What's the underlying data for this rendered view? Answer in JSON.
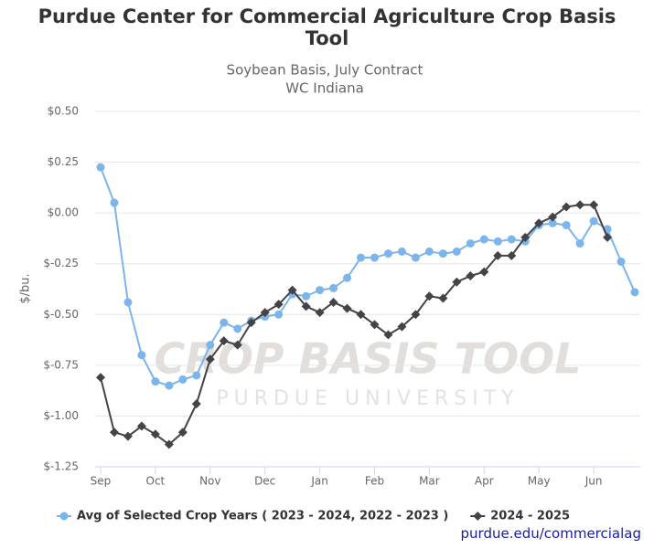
{
  "chart_data": {
    "type": "line",
    "title": "Purdue Center for Commercial Agriculture Crop Basis Tool",
    "subtitle": [
      "Soybean Basis, July Contract",
      "WC Indiana"
    ],
    "y_label": "$/bu.",
    "watermark": [
      "CROP BASIS TOOL",
      "PURDUE UNIVERSITY"
    ],
    "source": "purdue.edu/commercialag",
    "x": [
      0,
      1,
      2,
      3,
      4,
      5,
      6,
      7,
      8,
      9,
      10,
      11,
      12,
      13,
      14,
      15,
      16,
      17,
      18,
      19,
      20,
      21,
      22,
      23,
      24,
      25,
      26,
      27,
      28,
      29,
      30,
      31,
      32,
      33,
      34,
      35,
      36,
      37,
      38,
      39
    ],
    "xlim": [
      -0.4,
      39.4
    ],
    "xticks": [
      {
        "value": 0,
        "label": "Sep"
      },
      {
        "value": 4,
        "label": "Oct"
      },
      {
        "value": 8,
        "label": "Nov"
      },
      {
        "value": 12,
        "label": "Dec"
      },
      {
        "value": 16,
        "label": "Jan"
      },
      {
        "value": 20,
        "label": "Feb"
      },
      {
        "value": 24,
        "label": "Mar"
      },
      {
        "value": 28,
        "label": "Apr"
      },
      {
        "value": 32,
        "label": "May"
      },
      {
        "value": 36,
        "label": "Jun"
      }
    ],
    "ylim": [
      -1.25,
      0.5
    ],
    "yticks": [
      {
        "value": -1.25,
        "label": "$-1.25"
      },
      {
        "value": -1,
        "label": "$-1.00"
      },
      {
        "value": -0.75,
        "label": "$-0.75"
      },
      {
        "value": -0.5,
        "label": "$-0.50"
      },
      {
        "value": -0.25,
        "label": "$-0.25"
      },
      {
        "value": 0,
        "label": "$0.00"
      },
      {
        "value": 0.25,
        "label": "$0.25"
      },
      {
        "value": 0.5,
        "label": "$0.50"
      }
    ],
    "grid": true,
    "legend": "bottom",
    "series": [
      {
        "name": "Avg of Selected Crop Years ( 2023 - 2024, 2022 - 2023 )",
        "color": "#7cb5ec",
        "marker": "circle",
        "values": [
          0.225,
          0.05,
          -0.44,
          -0.7,
          -0.83,
          -0.85,
          -0.82,
          -0.8,
          -0.65,
          -0.54,
          -0.57,
          -0.53,
          -0.51,
          -0.5,
          -0.4,
          -0.41,
          -0.38,
          -0.37,
          -0.32,
          -0.22,
          -0.22,
          -0.2,
          -0.19,
          -0.22,
          -0.19,
          -0.2,
          -0.19,
          -0.15,
          -0.13,
          -0.14,
          -0.13,
          -0.14,
          -0.06,
          -0.05,
          -0.06,
          -0.15,
          -0.04,
          -0.08,
          -0.24,
          -0.39
        ]
      },
      {
        "name": "2024 - 2025",
        "color": "#434348",
        "marker": "diamond",
        "values": [
          -0.81,
          -1.08,
          -1.1,
          -1.05,
          -1.09,
          -1.14,
          -1.08,
          -0.94,
          -0.72,
          -0.63,
          -0.65,
          -0.54,
          -0.49,
          -0.45,
          -0.38,
          -0.46,
          -0.49,
          -0.44,
          -0.47,
          -0.5,
          -0.55,
          -0.6,
          -0.56,
          -0.5,
          -0.41,
          -0.42,
          -0.34,
          -0.31,
          -0.29,
          -0.21,
          -0.21,
          -0.12,
          -0.05,
          -0.02,
          0.03,
          0.04,
          0.04,
          -0.12,
          null,
          null
        ]
      }
    ]
  }
}
